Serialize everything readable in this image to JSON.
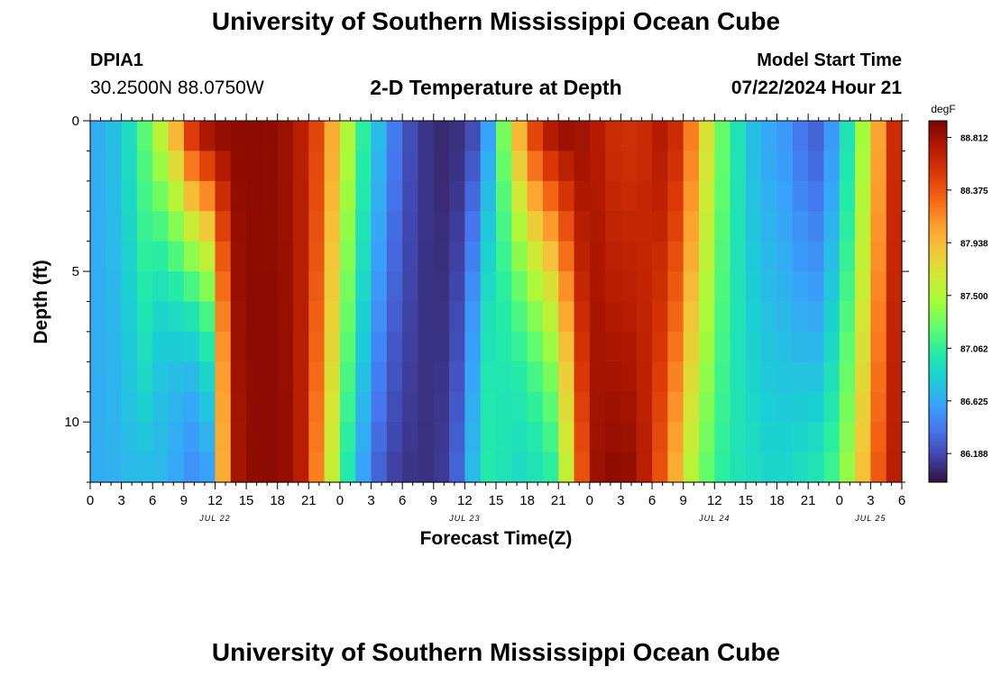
{
  "header": {
    "title": "University of Southern Mississippi Ocean Cube",
    "station_id": "DPIA1",
    "station_coords": "30.2500N  88.0750W",
    "subtitle": "2-D Temperature at Depth",
    "model_start_label": "Model Start Time",
    "model_start_time": "07/22/2024 Hour 21"
  },
  "footer": {
    "title": "University of Southern Mississippi Ocean Cube"
  },
  "chart_data": {
    "type": "heatmap",
    "title": "2-D Temperature at Depth",
    "xlabel": "Forecast Time(Z)",
    "ylabel": "Depth (ft)",
    "x_range_hours": [
      0,
      78
    ],
    "y_range_ft": [
      0,
      12
    ],
    "x_start_hour_of_day": 0,
    "x_tick_labels": [
      "0",
      "3",
      "6",
      "9",
      "12",
      "15",
      "18",
      "21",
      "0",
      "3",
      "6",
      "9",
      "12",
      "15",
      "18",
      "21",
      "0",
      "3",
      "6",
      "9",
      "12",
      "15",
      "18",
      "21",
      "0",
      "3",
      "6"
    ],
    "y_ticks": [
      0,
      5,
      10
    ],
    "y_tick_labels": [
      "0",
      "5",
      "10"
    ],
    "date_labels": [
      {
        "hour": 12,
        "label": "JUL 22"
      },
      {
        "hour": 36,
        "label": "JUL 23"
      },
      {
        "hour": 60,
        "label": "JUL 24"
      },
      {
        "hour": 75,
        "label": "JUL 25"
      }
    ],
    "colorbar": {
      "unit": "degF",
      "min": 85.95,
      "max": 88.95,
      "tick_values": [
        88.812,
        88.375,
        87.938,
        87.5,
        87.062,
        86.625,
        86.188
      ],
      "tick_labels": [
        "88.812",
        "88.375",
        "87.938",
        "87.500",
        "87.062",
        "86.625",
        "86.188"
      ],
      "stops": [
        "#30123b",
        "#4145ab",
        "#4675ed",
        "#39a2fc",
        "#1bcfd4",
        "#24eca6",
        "#61fc6c",
        "#a4fc3b",
        "#d1e834",
        "#f3c63a",
        "#fe9b2d",
        "#f36315",
        "#d93806",
        "#b11901",
        "#7a0403"
      ]
    },
    "grid": {
      "hours": [
        0,
        1.5,
        3,
        4.5,
        6,
        7.5,
        9,
        10.5,
        12,
        13.5,
        15,
        16.5,
        18,
        19.5,
        21,
        22.5,
        24,
        25.5,
        27,
        28.5,
        30,
        31.5,
        33,
        34.5,
        36,
        37.5,
        39,
        40.5,
        42,
        43.5,
        45,
        46.5,
        48,
        49.5,
        51,
        52.5,
        54,
        55.5,
        57,
        58.5,
        60,
        61.5,
        63,
        64.5,
        66,
        67.5,
        69,
        70.5,
        72,
        73.5,
        75,
        76.5
      ],
      "depths_ft": [
        0,
        1,
        2,
        3,
        4,
        5,
        6,
        7,
        8,
        9,
        10,
        11
      ],
      "surface_temp_degF": [
        86.65,
        86.72,
        86.9,
        87.2,
        87.55,
        87.95,
        88.5,
        88.75,
        88.85,
        88.87,
        88.88,
        88.87,
        88.82,
        88.7,
        88.45,
        88.0,
        87.5,
        87.05,
        86.7,
        86.4,
        86.2,
        86.1,
        86.05,
        86.08,
        86.2,
        86.6,
        87.3,
        87.95,
        88.45,
        88.72,
        88.82,
        88.8,
        88.72,
        88.6,
        88.58,
        88.62,
        88.72,
        88.6,
        88.2,
        87.7,
        87.25,
        86.95,
        86.72,
        86.62,
        86.55,
        86.4,
        86.3,
        86.55,
        86.95,
        87.45,
        88.05,
        88.6
      ],
      "bottom_temp_degF": [
        86.65,
        86.66,
        86.7,
        86.72,
        86.7,
        86.62,
        86.52,
        86.6,
        88.0,
        88.78,
        88.87,
        88.88,
        88.85,
        88.7,
        88.2,
        87.6,
        87.0,
        86.6,
        86.3,
        86.15,
        86.1,
        86.08,
        86.12,
        86.3,
        86.7,
        87.0,
        86.95,
        86.9,
        86.95,
        87.05,
        87.6,
        88.4,
        88.82,
        88.87,
        88.85,
        88.7,
        88.4,
        88.0,
        87.55,
        87.25,
        87.05,
        86.95,
        86.9,
        86.85,
        86.85,
        86.9,
        86.95,
        87.1,
        87.4,
        87.9,
        88.35,
        88.7
      ],
      "transition_bias": [
        0,
        0,
        0,
        0,
        0.32,
        0.3,
        0.28,
        0.25,
        0.28,
        0,
        0,
        0,
        0,
        0,
        0,
        0,
        0,
        0,
        0,
        0,
        0,
        0,
        0,
        0,
        0.18,
        0.3,
        0.3,
        0.26,
        0.24,
        0.2,
        0.16,
        0,
        0,
        0,
        0,
        0,
        0,
        0,
        0,
        0,
        0,
        0,
        0,
        0,
        0,
        0,
        0,
        0,
        0,
        0,
        0,
        0
      ]
    }
  }
}
